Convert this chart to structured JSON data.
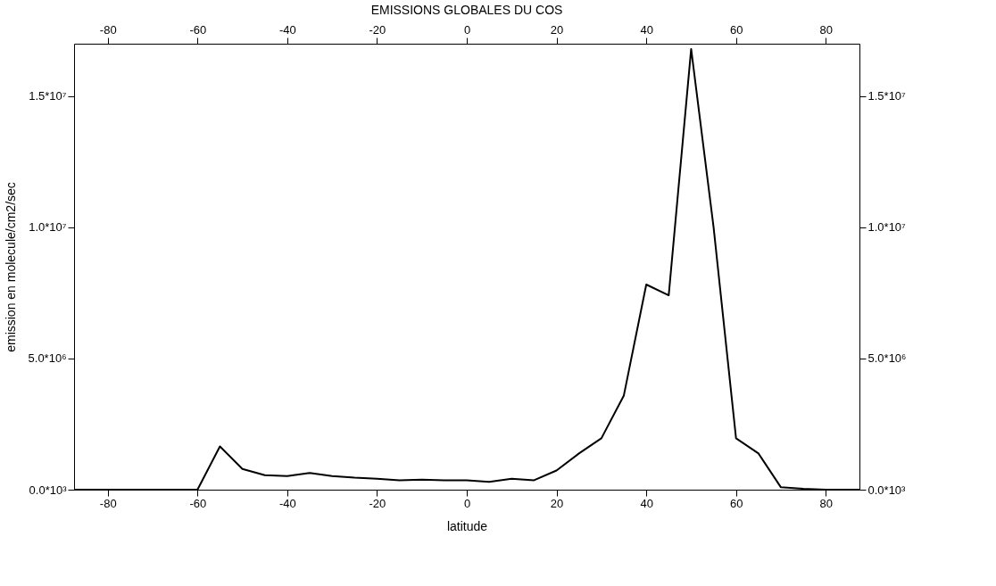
{
  "chart_data": {
    "type": "line",
    "title": "EMISSIONS GLOBALES DU COS",
    "xlabel": "latitude",
    "ylabel": "emission en molecule/cm2/sec",
    "x": [
      -87.5,
      -85,
      -80,
      -75,
      -70,
      -65,
      -60,
      -55,
      -50,
      -45,
      -40,
      -35,
      -30,
      -25,
      -20,
      -15,
      -10,
      -5,
      0,
      5,
      10,
      15,
      20,
      25,
      30,
      35,
      40,
      45,
      50,
      55,
      60,
      65,
      70,
      75,
      80,
      85,
      87.5
    ],
    "series": [
      {
        "color": "#000000",
        "values": [
          0,
          0,
          0,
          0,
          0,
          0,
          0,
          1650000,
          790000,
          550000,
          520000,
          640000,
          520000,
          460000,
          420000,
          360000,
          380000,
          360000,
          360000,
          300000,
          420000,
          360000,
          730000,
          1380000,
          1960000,
          3590000,
          7820000,
          7410000,
          16800000,
          10000000,
          1960000,
          1380000,
          90000,
          30000,
          0,
          0,
          0
        ]
      }
    ],
    "xlim": [
      -87.5,
      87.5
    ],
    "xticks": [
      -80,
      -60,
      -40,
      -20,
      0,
      20,
      40,
      60,
      80
    ],
    "x2lim": [
      -87.5,
      87.5
    ],
    "x2ticks": [
      -80,
      -60,
      -40,
      -20,
      0,
      20,
      40,
      60,
      80
    ],
    "ylim": [
      0,
      17000000
    ],
    "yticks": [
      {
        "value": 0,
        "label": "0.0*10³"
      },
      {
        "value": 5000000,
        "label": "5.0*10⁶"
      },
      {
        "value": 10000000,
        "label": "1.0*10⁷"
      },
      {
        "value": 15000000,
        "label": "1.5*10⁷"
      }
    ],
    "y2lim": [
      0,
      17000000
    ],
    "y2ticks": [
      {
        "value": 0,
        "label": "0.0*10³"
      },
      {
        "value": 5000000,
        "label": "5.0*10⁶"
      },
      {
        "value": 10000000,
        "label": "1.0*10⁷"
      },
      {
        "value": 15000000,
        "label": "1.5*10⁷"
      }
    ],
    "grid": false,
    "marker": "none",
    "line_style": "solid"
  }
}
